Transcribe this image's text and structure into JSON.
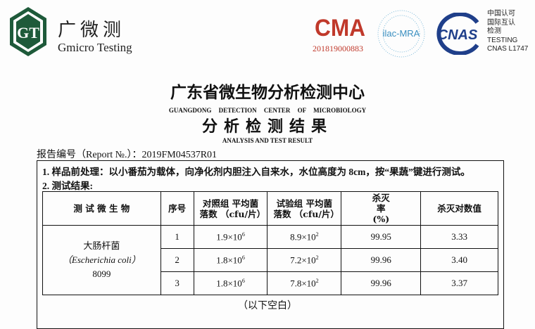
{
  "header": {
    "brand_cn": "广微测",
    "brand_en": "Gmicro Testing",
    "logo_letters": "GT",
    "cma_text": "CMA",
    "cma_number": "201819000883",
    "ilac_text": "ilac-MRA",
    "cnas_text": "CNAS",
    "cnas_lines": [
      "中国认可",
      "国际互认",
      "检测",
      "TESTING",
      "CNAS L1747"
    ]
  },
  "titles": {
    "center_cn": "广东省微生物分析检测中心",
    "center_en": "GUANGDONG DETECTION CENTER OF MICROBIOLOGY",
    "result_cn": "分析检测结果",
    "result_en": "ANALYSIS AND TEST RESULT"
  },
  "report_no": "报告编号（Report №.）：2019FM04537R01",
  "section1": "1. 样品前处理：以小番茄为载体，向净化剂内胆注入自来水，水位高度为 8cm，按“果蔬”键进行测试。",
  "section2": "2. 测试结果:",
  "table": {
    "headers": [
      "测 试 微 生 物",
      "序号",
      "对照组 平均菌落数 （cfu/片）",
      "试验组 平均菌落数 （cfu/片）",
      "杀灭率 (%)",
      "杀灭对数值"
    ],
    "organism": {
      "cn": "大肠杆菌",
      "latin": "（Escherichia coli）",
      "strain": "8099"
    },
    "rows": [
      {
        "no": "1",
        "control": "1.9×10",
        "control_exp": "6",
        "test": "8.9×10",
        "test_exp": "2",
        "rate": "99.95",
        "log": "3.33"
      },
      {
        "no": "2",
        "control": "1.8×10",
        "control_exp": "6",
        "test": "7.2×10",
        "test_exp": "2",
        "rate": "99.96",
        "log": "3.40"
      },
      {
        "no": "3",
        "control": "1.8×10",
        "control_exp": "6",
        "test": "7.8×10",
        "test_exp": "2",
        "rate": "99.96",
        "log": "3.37"
      }
    ]
  },
  "footer": "（以下空白）",
  "colors": {
    "logo_green": "#1e5a3a",
    "cma_red": "#c0392b",
    "cnas_blue": "#1f3f8a"
  }
}
